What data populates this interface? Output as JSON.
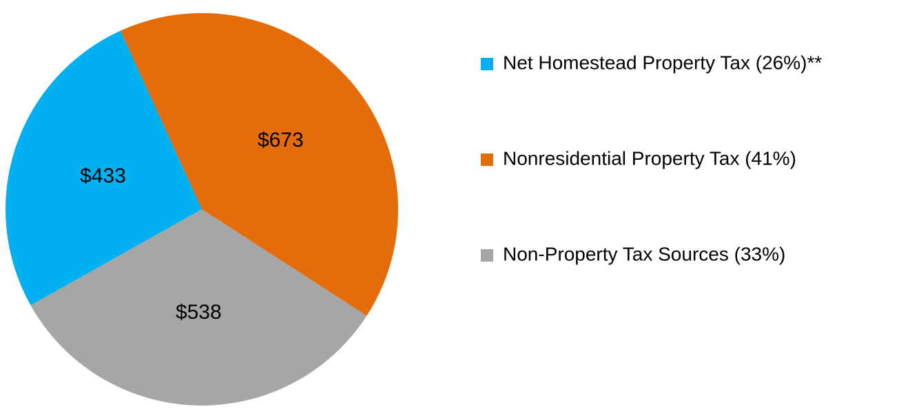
{
  "chart_data": {
    "type": "pie",
    "categories": [
      "Net Homestead Property Tax (26%)**",
      "Nonresidential Property Tax (41%)",
      "Non-Property Tax Sources (33%)"
    ],
    "values": [
      433,
      673,
      538
    ],
    "value_labels": [
      "$433",
      "$673",
      "$538"
    ],
    "colors": [
      "#00b0f0",
      "#e46c0a",
      "#a6a6a6"
    ],
    "legend": "right"
  }
}
